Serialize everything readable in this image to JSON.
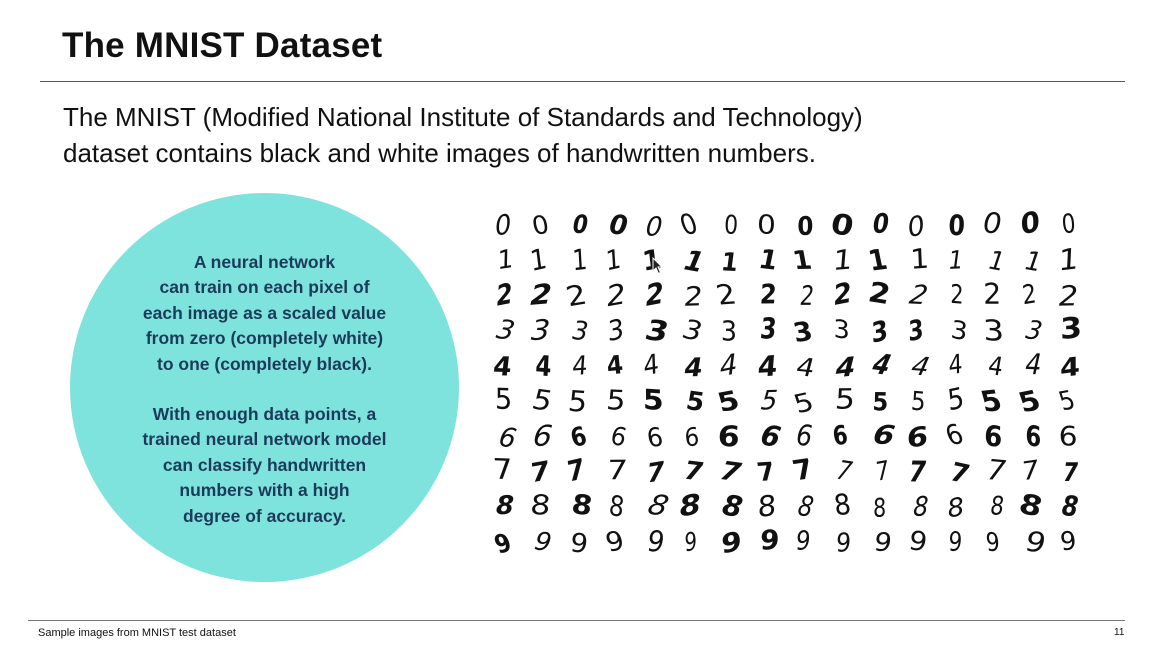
{
  "slide": {
    "title": "The MNIST Dataset",
    "intro_lines": [
      "The MNIST (Modified National Institute of Standards and Technology)",
      "dataset contains black and white images of handwritten numbers."
    ],
    "callout": {
      "paragraph1_lines": [
        "A neural network",
        "can train on each pixel of",
        "each image as a scaled value",
        "from zero (completely white)",
        "to one (completely black)."
      ],
      "paragraph2_lines": [
        "With enough data points, a",
        "trained neural network model",
        "can classify handwritten",
        "numbers with a high",
        "degree of accuracy."
      ],
      "fill_color": "#7fe3dd",
      "text_color": "#1c3a5a"
    },
    "digit_grid": {
      "digits": [
        "0",
        "1",
        "2",
        "3",
        "4",
        "5",
        "6",
        "7",
        "8",
        "9"
      ],
      "samples_per_digit": 16
    },
    "caption": "Sample images from MNIST test dataset",
    "page_number": "11"
  },
  "cursor_icon": "mouse-pointer-icon"
}
